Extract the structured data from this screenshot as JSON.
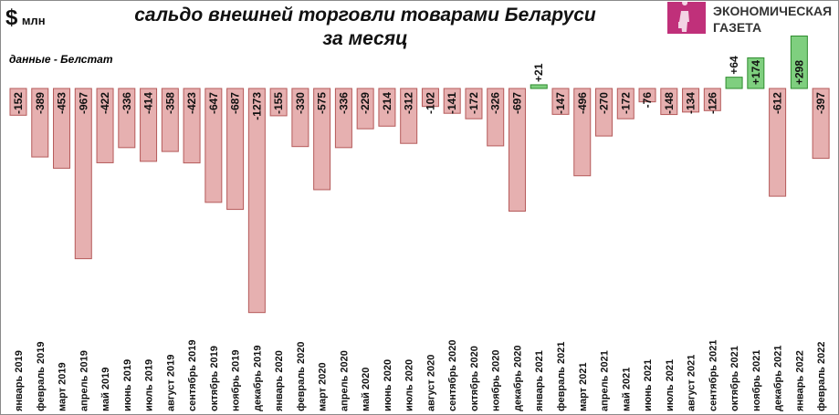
{
  "unit": {
    "symbol": "$",
    "label": "млн"
  },
  "source": "данные - Белстат",
  "logo": {
    "brand": "ЭКОНОМИЧЕСКАЯ ГАЗЕТА",
    "line1": "ЭКОНОМИЧЕСКАЯ",
    "line2": "ГАЗЕТА"
  },
  "colors": {
    "negative": "#e6b0b0",
    "negative_border": "#b55a5a",
    "positive": "#7fcf7f",
    "positive_border": "#2e8b2e"
  },
  "chart_data": {
    "type": "bar",
    "title": "сальдо внешней торговли товарами Беларуси за месяц",
    "title_line1": "сальдо внешней торговли товарами Беларуси",
    "title_line2": "за месяц",
    "ylabel": "$ млн",
    "grid": false,
    "categories": [
      "январь 2019",
      "февраль 2019",
      "март 2019",
      "апрель 2019",
      "май 2019",
      "июнь 2019",
      "июль 2019",
      "август 2019",
      "сентябрь 2019",
      "октябрь 2019",
      "ноябрь 2019",
      "декабрь 2019",
      "январь 2020",
      "февраль 2020",
      "март 2020",
      "апрель 2020",
      "май 2020",
      "июнь 2020",
      "июль 2020",
      "август 2020",
      "сентябрь 2020",
      "октябрь 2020",
      "ноябрь 2020",
      "декабрь 2020",
      "январь 2021",
      "февраль 2021",
      "март 2021",
      "апрель 2021",
      "май 2021",
      "июнь 2021",
      "июль 2021",
      "август 2021",
      "сентябрь 2021",
      "октябрь 2021",
      "ноябрь 2021",
      "декабрь 2021",
      "январь 2022",
      "февраль 2022"
    ],
    "values": [
      -152,
      -389,
      -453,
      -967,
      -422,
      -336,
      -414,
      -358,
      -423,
      -647,
      -687,
      -1273,
      -155,
      -330,
      -575,
      -336,
      -229,
      -214,
      -312,
      -102,
      -141,
      -172,
      -326,
      -697,
      21,
      -147,
      -496,
      -270,
      -172,
      -76,
      -148,
      -134,
      -126,
      64,
      174,
      -612,
      298,
      -397
    ],
    "labels": [
      "-152",
      "-389",
      "-453",
      "-967",
      "-422",
      "-336",
      "-414",
      "-358",
      "-423",
      "-647",
      "-687",
      "-1273",
      "-155",
      "-330",
      "-575",
      "-336",
      "-229",
      "-214",
      "-312",
      "-102",
      "-141",
      "-172",
      "-326",
      "-697",
      "+21",
      "-147",
      "-496",
      "-270",
      "-172",
      "-76",
      "-148",
      "-134",
      "-126",
      "+64",
      "+174",
      "-612",
      "+298",
      "-397"
    ]
  }
}
